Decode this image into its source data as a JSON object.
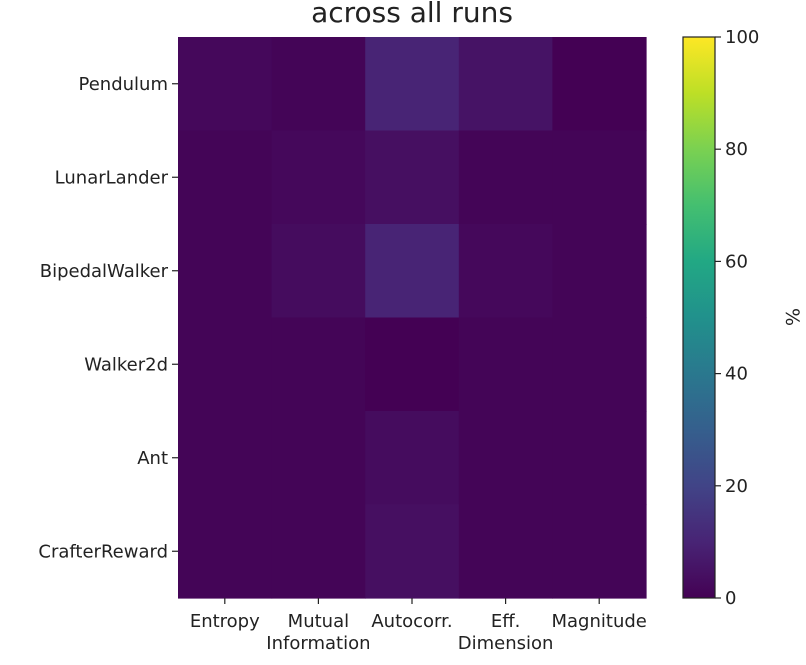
{
  "chart_data": {
    "type": "heatmap",
    "title": "across all runs",
    "rows": [
      "Pendulum",
      "LunarLander",
      "BipedalWalker",
      "Walker2d",
      "Ant",
      "CrafterReward"
    ],
    "cols": [
      "Entropy",
      "Mutual Information",
      "Autocorr.",
      "Eff. Dimension",
      "Magnitude"
    ],
    "col_labels": [
      [
        "Entropy"
      ],
      [
        "Mutual",
        "Information"
      ],
      [
        "Autocorr."
      ],
      [
        "Eff.",
        "Dimension"
      ],
      [
        "Magnitude"
      ]
    ],
    "values": [
      [
        2,
        1,
        10,
        5,
        0
      ],
      [
        1,
        2,
        4,
        1,
        1
      ],
      [
        1,
        3,
        10,
        2,
        1
      ],
      [
        1,
        1,
        0,
        1,
        1
      ],
      [
        1,
        1,
        3,
        1,
        1
      ],
      [
        1,
        1,
        4,
        1,
        1
      ]
    ],
    "colorbar": {
      "label": "%",
      "range": [
        0,
        100
      ],
      "ticks": [
        0,
        20,
        40,
        60,
        80,
        100
      ],
      "colormap": "viridis"
    },
    "grid": false
  }
}
